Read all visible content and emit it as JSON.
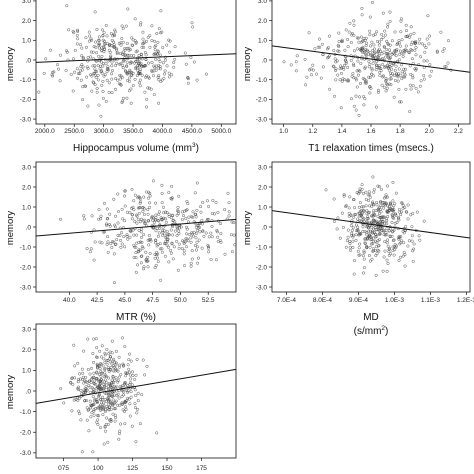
{
  "chart_data": [
    {
      "type": "scatter",
      "xlabel": "Hippocampus volume (mm",
      "xlabel_sup": "3",
      "xlabel_suffix": ")",
      "ylabel": "memory",
      "xlim": [
        1850,
        5250
      ],
      "ylim": [
        -3.25,
        3.25
      ],
      "xticks": [
        "2000.0",
        "2500.0",
        "3000.0",
        "3500.0",
        "4000.0",
        "4500.0",
        "5000.0"
      ],
      "xtick_values": [
        2000,
        2500,
        3000,
        3500,
        4000,
        4500,
        5000
      ],
      "yticks": [
        "3.0",
        "2.0",
        "1.0",
        ".0",
        "-1.0",
        "-2.0",
        "-3.0"
      ],
      "ytick_values": [
        3,
        2,
        1,
        0,
        -1,
        -2,
        -3
      ],
      "fit_line": {
        "x": [
          1850,
          5250
        ],
        "y": [
          -0.12,
          0.32
        ]
      },
      "point_cloud": {
        "n": 420,
        "x_center": 3300,
        "x_spread": 520,
        "y_spread": 0.95,
        "seed": 11
      }
    },
    {
      "type": "scatter",
      "xlabel": "T1 relaxation times (msecs.)",
      "ylabel": "memory",
      "xlim": [
        0.92,
        2.28
      ],
      "ylim": [
        -3.25,
        3.25
      ],
      "xticks": [
        "1.0",
        "1.2",
        "1.4",
        "1.6",
        "1.8",
        "2.0",
        "2.2"
      ],
      "xtick_values": [
        1.0,
        1.2,
        1.4,
        1.6,
        1.8,
        2.0,
        2.2
      ],
      "yticks": [
        "3.0",
        "2.0",
        "1.0",
        ".0",
        "-1.0",
        "-2.0",
        "-3.0"
      ],
      "ytick_values": [
        3,
        2,
        1,
        0,
        -1,
        -2,
        -3
      ],
      "fit_line": {
        "x": [
          0.92,
          2.28
        ],
        "y": [
          0.72,
          -0.62
        ]
      },
      "point_cloud": {
        "n": 420,
        "x_center": 1.62,
        "x_spread": 0.21,
        "y_spread": 0.95,
        "seed": 23
      }
    },
    {
      "type": "scatter",
      "xlabel": "MTR (%)",
      "ylabel": "memory",
      "xlim": [
        37,
        55
      ],
      "ylim": [
        -3.25,
        3.25
      ],
      "xticks": [
        "40.0",
        "42.5",
        "45.0",
        "47.5",
        "50.0",
        "52.5"
      ],
      "xtick_values": [
        40.0,
        42.5,
        45.0,
        47.5,
        50.0,
        52.5
      ],
      "yticks": [
        "3.0",
        "2.0",
        "1.0",
        ".0",
        "-1.0",
        "-2.0",
        "-3.0"
      ],
      "ytick_values": [
        3,
        2,
        1,
        0,
        -1,
        -2,
        -3
      ],
      "fit_line": {
        "x": [
          37,
          55
        ],
        "y": [
          -0.45,
          0.38
        ]
      },
      "point_cloud": {
        "n": 420,
        "x_center": 48.2,
        "x_spread": 2.9,
        "y_spread": 0.95,
        "seed": 37
      }
    },
    {
      "type": "scatter",
      "xlabel": "MD",
      "xlabel2": "(s/mm",
      "xlabel2_sup": "2",
      "xlabel2_suffix": ")",
      "ylabel": "memory",
      "xlim": [
        0.00066,
        0.00121
      ],
      "ylim": [
        -3.25,
        3.25
      ],
      "xticks": [
        "7.0E-4",
        "8.0E-4",
        "9.0E-4",
        "1.0E-3",
        "1.1E-3",
        "1.2E-3"
      ],
      "xtick_values": [
        0.0007,
        0.0008,
        0.0009,
        0.001,
        0.0011,
        0.0012
      ],
      "yticks": [
        "3.0",
        "2.0",
        "1.0",
        ".0",
        "-1.0",
        "-2.0",
        "-3.0"
      ],
      "ytick_values": [
        3,
        2,
        1,
        0,
        -1,
        -2,
        -3
      ],
      "fit_line": {
        "x": [
          0.00066,
          0.00121
        ],
        "y": [
          0.82,
          -0.55
        ]
      },
      "point_cloud": {
        "n": 420,
        "x_center": 0.000955,
        "x_spread": 4.8e-05,
        "y_spread": 0.95,
        "seed": 51
      }
    },
    {
      "type": "scatter",
      "xlabel": "",
      "ylabel": "memory",
      "xlim": [
        55,
        200
      ],
      "ylim": [
        -3.25,
        3.25
      ],
      "xticks": [
        "075",
        "100",
        "125",
        "150",
        "175"
      ],
      "xtick_values": [
        75,
        100,
        125,
        150,
        175
      ],
      "yticks": [
        "3.0",
        "2.0",
        "1.0",
        ".0",
        "-1.0",
        "-2.0",
        "-3.0"
      ],
      "ytick_values": [
        3,
        2,
        1,
        0,
        -1,
        -2,
        -3
      ],
      "fit_line": {
        "x": [
          55,
          200
        ],
        "y": [
          -0.6,
          1.05
        ]
      },
      "point_cloud": {
        "n": 420,
        "x_center": 105,
        "x_spread": 11,
        "y_spread": 0.95,
        "seed": 67
      }
    }
  ]
}
